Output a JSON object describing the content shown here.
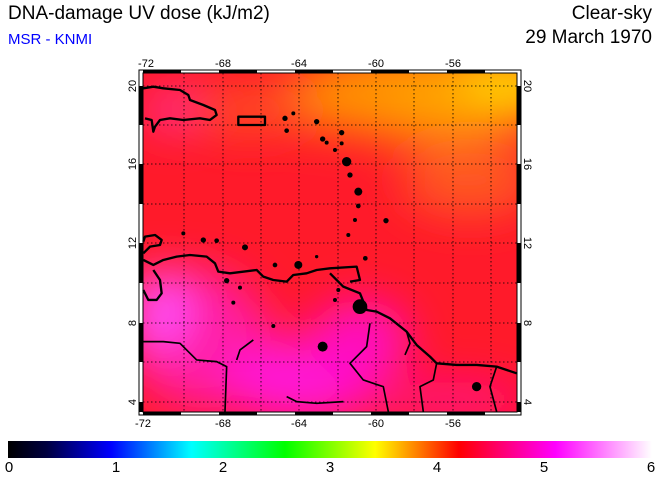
{
  "header": {
    "title": "DNA-damage UV dose (kJ/m2)",
    "source": "MSR - KNMI",
    "mode": "Clear-sky",
    "date": "29 March 1970"
  },
  "map": {
    "lon_ticks": [
      "-72",
      "-68",
      "-64",
      "-60",
      "-56"
    ],
    "lat_ticks": [
      "20",
      "16",
      "12",
      "8",
      "4"
    ],
    "colors": {
      "low": "#ff1a2a",
      "high_orange": "#ffa000",
      "yellow": "#ffd800",
      "magenta": "#ff30f0"
    }
  },
  "colorbar": {
    "labels": [
      "0",
      "1",
      "2",
      "3",
      "4",
      "5",
      "6"
    ],
    "stops": [
      "#000000",
      "#0000ff",
      "#00ffff",
      "#00ff00",
      "#ffff00",
      "#ff0000",
      "#ff00ff",
      "#ffffff"
    ]
  }
}
